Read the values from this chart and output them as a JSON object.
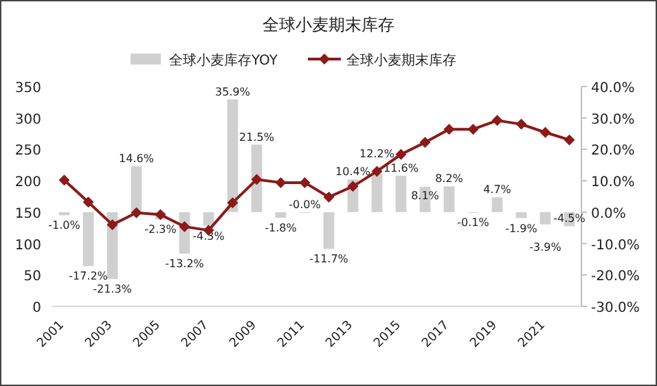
{
  "chart_data": {
    "type": "bar",
    "title": "全球小麦期末库存",
    "categories": [
      "2001",
      null,
      "2003",
      null,
      "2005",
      null,
      "2007",
      null,
      "2009",
      null,
      "2011",
      null,
      "2013",
      null,
      "2015",
      null,
      "2017",
      null,
      "2019",
      null,
      "2021",
      null
    ],
    "series": [
      {
        "name": "全球小麦库存YOY",
        "axis": "y2",
        "color": "#d0d0d0",
        "values": [
          -1.0,
          -17.2,
          -21.3,
          14.6,
          -2.3,
          -13.2,
          -4.3,
          35.9,
          21.5,
          -1.8,
          0.0,
          -11.7,
          10.4,
          12.2,
          11.6,
          8.1,
          8.2,
          -0.1,
          4.7,
          -1.9,
          -3.9,
          -4.5
        ],
        "value_labels": [
          "-1.0%",
          "-17.2%",
          "-21.3%",
          "14.6%",
          "-2.3%",
          "-13.2%",
          "-4.3%",
          "35.9%",
          "21.5%",
          "-1.8%",
          "-0.0%",
          "-11.7%",
          "10.4%",
          "12.2%",
          "11.6%",
          "8.1%",
          "8.2%",
          "-0.1%",
          "4.7%",
          "-1.9%",
          "-3.9%",
          "-4.5%"
        ]
      },
      {
        "name": "全球小麦期末库存",
        "type": "line",
        "color": "#8b1a1a",
        "values": [
          201,
          166,
          130,
          149,
          146,
          127,
          121,
          165,
          202,
          197,
          197,
          174,
          191,
          215,
          242,
          261,
          282,
          282,
          296,
          290,
          277,
          265
        ]
      }
    ],
    "ylim": [
      0,
      350
    ],
    "yticks": [
      0,
      50,
      100,
      150,
      200,
      250,
      300,
      350
    ],
    "y2lim": [
      -30,
      40
    ],
    "y2ticks": [
      {
        "value": -30,
        "label": "-30.0%"
      },
      {
        "value": -20,
        "label": "-20.0%"
      },
      {
        "value": -10,
        "label": "-10.0%"
      },
      {
        "value": 0,
        "label": "0.0%"
      },
      {
        "value": 10,
        "label": "10.0%"
      },
      {
        "value": 20,
        "label": "20.0%"
      },
      {
        "value": 30,
        "label": "30.0%"
      },
      {
        "value": 40,
        "label": "40.0%"
      }
    ],
    "marker": "diamond",
    "legend": "top"
  }
}
